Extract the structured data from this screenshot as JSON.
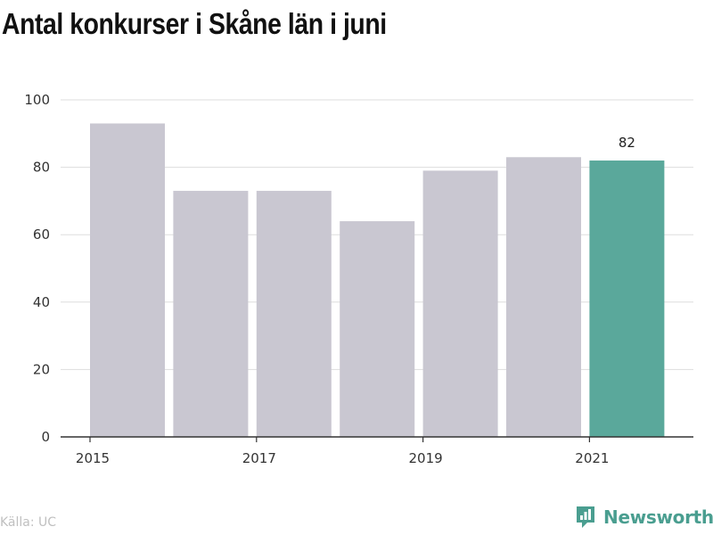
{
  "title": "Antal konkurser i Skåne län i juni",
  "source": "Källa: UC",
  "brand": {
    "name": "Newsworthy",
    "icon": "bar-chart-logo-icon",
    "color": "#4a9e90"
  },
  "colors": {
    "bar": "#c9c7d1",
    "highlight": "#5aa89b",
    "grid": "#dddddd",
    "axis": "#333333"
  },
  "chart_data": {
    "type": "bar",
    "categories": [
      "2015",
      "2016",
      "2017",
      "2018",
      "2019",
      "2020",
      "2021"
    ],
    "values": [
      93,
      73,
      73,
      64,
      79,
      83,
      82
    ],
    "highlight_index": 6,
    "data_labels": [
      {
        "index": 6,
        "text": "82"
      }
    ],
    "x_tick_labels": [
      "2015",
      "2017",
      "2019",
      "2021"
    ],
    "y_ticks": [
      "0",
      "20",
      "40",
      "60",
      "80",
      "100"
    ],
    "ylim": [
      0,
      100
    ],
    "grid": true,
    "title": "Antal konkurser i Skåne län i juni",
    "xlabel": "",
    "ylabel": ""
  }
}
